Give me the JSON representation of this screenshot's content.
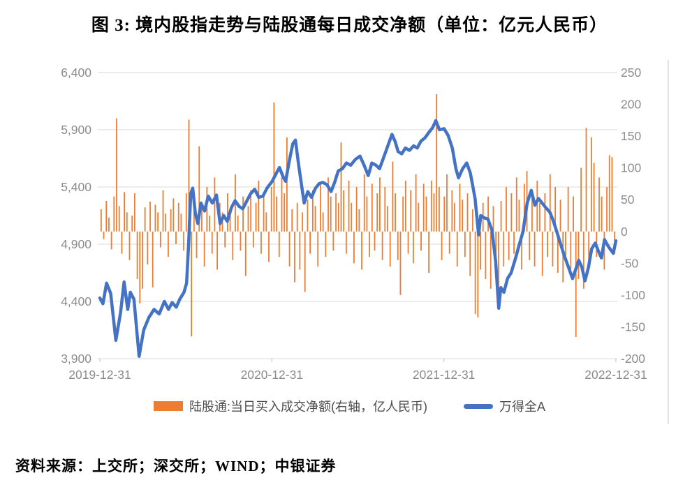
{
  "title": "图 3: 境内股指走势与陆股通每日成交净额（单位：亿元人民币）",
  "source": "资料来源：上交所；深交所；WIND；中银证券",
  "legend": {
    "bar_label": "陆股通:当日买入成交净额(右轴，亿人民币)",
    "line_label": "万得全A"
  },
  "colors": {
    "bar": "#ED7D31",
    "line": "#4472C4",
    "grid": "#D9D9D9",
    "axis_line": "#D0CECE",
    "tick": "#BFBFBF",
    "axis_text": "#8C8C8C",
    "legend_text": "#4D4D4D"
  },
  "chart_data": {
    "type": "bar+line combo, daily frequency",
    "title": "境内股指走势与陆股通每日成交净额",
    "unit": "亿元人民币",
    "grid": "horizontal on",
    "legend_position": "bottom center",
    "x_axis": {
      "tick_labels": [
        "2019-12-31",
        "2020-12-31",
        "2021-12-31",
        "2022-12-31"
      ],
      "range": [
        "2019-12-31",
        "2022-12-31"
      ]
    },
    "left_axis": {
      "series": "万得全A",
      "min": 3900,
      "max": 6400,
      "step": 500,
      "tick_labels": [
        "6,400",
        "5,900",
        "5,400",
        "4,900",
        "4,400",
        "3,900"
      ]
    },
    "right_axis": {
      "series": "陆股通当日买入成交净额",
      "min": -200,
      "max": 250,
      "step": 50,
      "tick_labels": [
        "250",
        "200",
        "150",
        "100",
        "50",
        "0",
        "-50",
        "-100",
        "-150",
        "-200"
      ]
    },
    "line_series": {
      "name": "万得全A",
      "axis": "left",
      "points_x_fraction_value": [
        [
          0.0,
          4430
        ],
        [
          0.006,
          4380
        ],
        [
          0.013,
          4560
        ],
        [
          0.021,
          4470
        ],
        [
          0.031,
          4060
        ],
        [
          0.04,
          4300
        ],
        [
          0.047,
          4570
        ],
        [
          0.054,
          4330
        ],
        [
          0.059,
          4480
        ],
        [
          0.066,
          4420
        ],
        [
          0.076,
          3920
        ],
        [
          0.085,
          4150
        ],
        [
          0.095,
          4260
        ],
        [
          0.105,
          4330
        ],
        [
          0.115,
          4290
        ],
        [
          0.125,
          4400
        ],
        [
          0.133,
          4330
        ],
        [
          0.14,
          4390
        ],
        [
          0.148,
          4350
        ],
        [
          0.155,
          4420
        ],
        [
          0.163,
          4480
        ],
        [
          0.168,
          4560
        ],
        [
          0.172,
          4900
        ],
        [
          0.176,
          5340
        ],
        [
          0.18,
          5390
        ],
        [
          0.185,
          5170
        ],
        [
          0.19,
          5080
        ],
        [
          0.196,
          5260
        ],
        [
          0.203,
          5190
        ],
        [
          0.21,
          5320
        ],
        [
          0.218,
          5260
        ],
        [
          0.226,
          5330
        ],
        [
          0.233,
          5080
        ],
        [
          0.24,
          5150
        ],
        [
          0.247,
          5100
        ],
        [
          0.255,
          5220
        ],
        [
          0.262,
          5280
        ],
        [
          0.27,
          5230
        ],
        [
          0.277,
          5210
        ],
        [
          0.285,
          5280
        ],
        [
          0.292,
          5340
        ],
        [
          0.3,
          5380
        ],
        [
          0.308,
          5310
        ],
        [
          0.316,
          5320
        ],
        [
          0.324,
          5390
        ],
        [
          0.334,
          5450
        ],
        [
          0.342,
          5520
        ],
        [
          0.348,
          5570
        ],
        [
          0.355,
          5490
        ],
        [
          0.36,
          5450
        ],
        [
          0.368,
          5650
        ],
        [
          0.374,
          5780
        ],
        [
          0.379,
          5810
        ],
        [
          0.385,
          5600
        ],
        [
          0.392,
          5380
        ],
        [
          0.396,
          5260
        ],
        [
          0.403,
          5360
        ],
        [
          0.41,
          5310
        ],
        [
          0.418,
          5390
        ],
        [
          0.425,
          5430
        ],
        [
          0.432,
          5440
        ],
        [
          0.44,
          5420
        ],
        [
          0.448,
          5360
        ],
        [
          0.455,
          5440
        ],
        [
          0.462,
          5540
        ],
        [
          0.47,
          5560
        ],
        [
          0.478,
          5610
        ],
        [
          0.486,
          5590
        ],
        [
          0.495,
          5640
        ],
        [
          0.504,
          5670
        ],
        [
          0.512,
          5590
        ],
        [
          0.52,
          5500
        ],
        [
          0.527,
          5610
        ],
        [
          0.535,
          5590
        ],
        [
          0.542,
          5560
        ],
        [
          0.55,
          5660
        ],
        [
          0.558,
          5760
        ],
        [
          0.566,
          5860
        ],
        [
          0.572,
          5800
        ],
        [
          0.578,
          5710
        ],
        [
          0.585,
          5690
        ],
        [
          0.592,
          5740
        ],
        [
          0.6,
          5720
        ],
        [
          0.608,
          5760
        ],
        [
          0.615,
          5740
        ],
        [
          0.622,
          5800
        ],
        [
          0.63,
          5830
        ],
        [
          0.638,
          5880
        ],
        [
          0.645,
          5920
        ],
        [
          0.651,
          5980
        ],
        [
          0.658,
          5900
        ],
        [
          0.667,
          5910
        ],
        [
          0.675,
          5850
        ],
        [
          0.683,
          5740
        ],
        [
          0.69,
          5560
        ],
        [
          0.695,
          5480
        ],
        [
          0.703,
          5560
        ],
        [
          0.711,
          5610
        ],
        [
          0.718,
          5520
        ],
        [
          0.727,
          5300
        ],
        [
          0.734,
          4980
        ],
        [
          0.738,
          5150
        ],
        [
          0.745,
          5130
        ],
        [
          0.752,
          5120
        ],
        [
          0.76,
          5020
        ],
        [
          0.767,
          4750
        ],
        [
          0.773,
          4340
        ],
        [
          0.777,
          4520
        ],
        [
          0.783,
          4480
        ],
        [
          0.79,
          4600
        ],
        [
          0.797,
          4650
        ],
        [
          0.805,
          4770
        ],
        [
          0.813,
          4900
        ],
        [
          0.82,
          5010
        ],
        [
          0.828,
          5260
        ],
        [
          0.836,
          5370
        ],
        [
          0.843,
          5240
        ],
        [
          0.85,
          5300
        ],
        [
          0.857,
          5260
        ],
        [
          0.864,
          5220
        ],
        [
          0.872,
          5180
        ],
        [
          0.879,
          5100
        ],
        [
          0.886,
          5000
        ],
        [
          0.893,
          4900
        ],
        [
          0.9,
          4800
        ],
        [
          0.908,
          4700
        ],
        [
          0.916,
          4600
        ],
        [
          0.922,
          4680
        ],
        [
          0.928,
          4760
        ],
        [
          0.934,
          4700
        ],
        [
          0.94,
          4580
        ],
        [
          0.947,
          4700
        ],
        [
          0.953,
          4860
        ],
        [
          0.96,
          4910
        ],
        [
          0.966,
          4840
        ],
        [
          0.972,
          4780
        ],
        [
          0.978,
          4940
        ],
        [
          0.984,
          4890
        ],
        [
          0.99,
          4850
        ],
        [
          0.995,
          4820
        ],
        [
          1.0,
          4930
        ]
      ]
    },
    "bar_series": {
      "name": "陆股通:当日买入成交净额(右轴，亿人民币)",
      "axis": "right",
      "note": "daily values sampled across 2019-12-31 to 2022-12-31; key spikes: +178 (2020-02), -165 (2020-07), +203 (2021-01), +216 (2021-12), -166 (2022-10), +163 (2022-11)",
      "values": [
        35,
        -12,
        48,
        22,
        -28,
        55,
        178,
        40,
        -35,
        62,
        30,
        -45,
        25,
        60,
        -75,
        -113,
        -90,
        38,
        -52,
        47,
        -88,
        42,
        30,
        -25,
        65,
        28,
        -40,
        35,
        52,
        -20,
        45,
        28,
        -30,
        60,
        176,
        -165,
        58,
        -42,
        134,
        40,
        -55,
        70,
        25,
        -35,
        85,
        -60,
        45,
        30,
        -25,
        60,
        35,
        -45,
        90,
        25,
        -30,
        55,
        -70,
        40,
        65,
        -25,
        45,
        80,
        -35,
        55,
        30,
        -48,
        70,
        203,
        55,
        -40,
        85,
        60,
        148,
        -55,
        35,
        -80,
        45,
        -60,
        30,
        -95,
        50,
        -35,
        65,
        40,
        -55,
        75,
        30,
        -40,
        85,
        55,
        -30,
        60,
        45,
        140,
        65,
        -35,
        80,
        45,
        -50,
        70,
        35,
        -60,
        90,
        55,
        -40,
        75,
        -30,
        60,
        85,
        -45,
        70,
        40,
        -55,
        110,
        60,
        -45,
        -100,
        55,
        80,
        -35,
        65,
        -50,
        90,
        45,
        -30,
        75,
        55,
        -65,
        80,
        60,
        216,
        70,
        -45,
        55,
        90,
        -35,
        65,
        45,
        -55,
        75,
        50,
        -40,
        60,
        -70,
        35,
        -130,
        -135,
        -60,
        45,
        -75,
        55,
        -90,
        40,
        -65,
        -100,
        48,
        -55,
        70,
        -45,
        60,
        -35,
        85,
        50,
        -60,
        75,
        95,
        -45,
        65,
        -55,
        80,
        45,
        -70,
        60,
        -40,
        90,
        -55,
        70,
        -65,
        50,
        -80,
        -45,
        70,
        -60,
        55,
        -166,
        -75,
        100,
        -90,
        163,
        -55,
        148,
        108,
        -40,
        85,
        55,
        -60,
        70,
        120,
        117,
        -35
      ]
    }
  }
}
